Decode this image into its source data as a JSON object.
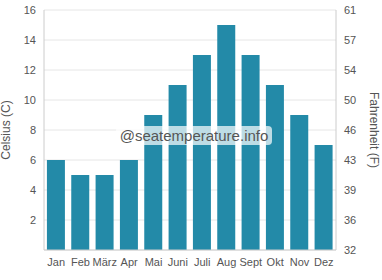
{
  "chart_data": {
    "type": "bar",
    "categories": [
      "Jan",
      "Feb",
      "März",
      "Apr",
      "Mai",
      "Juni",
      "Juli",
      "Aug",
      "Sept",
      "Okt",
      "Nov",
      "Dez"
    ],
    "values": [
      6,
      5,
      5,
      6,
      9,
      11,
      13,
      15,
      13,
      11,
      9,
      7
    ],
    "color": "#238aa8",
    "ylabel": "Celsius (C)",
    "ylim": [
      0,
      16
    ],
    "yticks": [
      2,
      4,
      6,
      8,
      10,
      12,
      14,
      16
    ],
    "y2label": "Fahrenheit (F)",
    "y2lim": [
      32,
      60.8
    ],
    "y2ticks": [
      32,
      {
        "value": 35.6,
        "label": "36"
      },
      {
        "value": 39.2,
        "label": "39"
      },
      {
        "value": 42.8,
        "label": "43"
      },
      {
        "value": 46.4,
        "label": "46"
      },
      50,
      {
        "value": 53.6,
        "label": "54"
      },
      {
        "value": 57.2,
        "label": "57"
      },
      {
        "value": 60.8,
        "label": "61"
      }
    ],
    "grid": true,
    "annotation": "@seatemperature.info"
  }
}
